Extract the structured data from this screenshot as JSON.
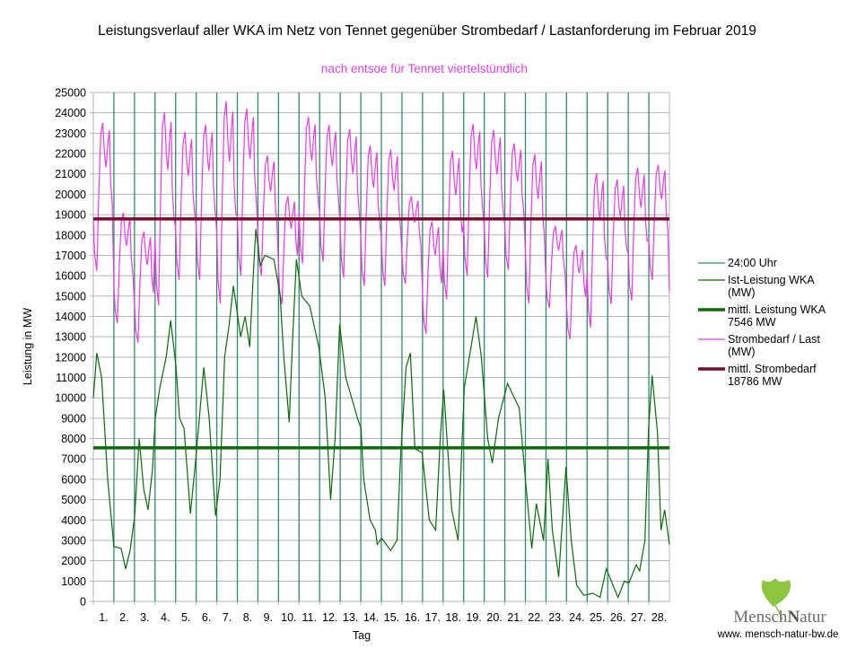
{
  "chart_data": {
    "type": "line",
    "title": "Leistungsverlauf aller WKA im Netz von Tennet gegenüber  Strombedarf / Lastanforderung im Februar 2019",
    "subtitle": "nach entsoe für Tennet viertelstündlich",
    "xlabel": "Tag",
    "ylabel": "Leistung in MW",
    "ylim": [
      0,
      25000
    ],
    "xlim": [
      0,
      28
    ],
    "grid": true,
    "legend_position": "right",
    "y_ticks": [
      0,
      1000,
      2000,
      3000,
      4000,
      5000,
      6000,
      7000,
      8000,
      9000,
      10000,
      11000,
      12000,
      13000,
      14000,
      15000,
      16000,
      17000,
      18000,
      19000,
      20000,
      21000,
      22000,
      23000,
      24000,
      25000
    ],
    "x_tick_labels": [
      "1.",
      "2.",
      "3.",
      "4.",
      "5.",
      "6.",
      "7.",
      "8.",
      "9.",
      "10.",
      "11.",
      "12.",
      "13.",
      "14.",
      "15.",
      "16.",
      "17.",
      "18.",
      "19.",
      "20.",
      "21.",
      "22.",
      "23.",
      "24.",
      "25.",
      "26.",
      "27.",
      "28."
    ],
    "legend": [
      {
        "label": "24:00 Uhr",
        "color": "#2e8b6a",
        "width": 1
      },
      {
        "label": "Ist-Leistung WKA (MW)",
        "color": "#0b6b0b",
        "width": 1
      },
      {
        "label": "mittl. Leistung WKA 7546 MW",
        "color": "#0b6b0b",
        "width": 4
      },
      {
        "label": "Strombedarf / Last (MW)",
        "color": "#e83ce8",
        "width": 1
      },
      {
        "label": "mittl. Strombedarf 18786 MW",
        "color": "#7a0a2a",
        "width": 4
      }
    ],
    "legend_lines": [
      [
        "24:00 Uhr"
      ],
      [
        "Ist-Leistung WKA",
        "(MW)"
      ],
      [
        "mittl. Leistung WKA",
        "7546 MW"
      ],
      [
        "Strombedarf / Last",
        "(MW)"
      ],
      [
        "mittl. Strombedarf",
        "18786 MW"
      ]
    ],
    "mean_wka": 7546,
    "mean_demand": 18786,
    "wka_series": [
      [
        0,
        10000
      ],
      [
        0.17,
        12200
      ],
      [
        0.4,
        11000
      ],
      [
        0.7,
        6000
      ],
      [
        1.0,
        2700
      ],
      [
        1.35,
        2600
      ],
      [
        1.57,
        1600
      ],
      [
        1.79,
        2500
      ],
      [
        2.01,
        4200
      ],
      [
        2.23,
        8000
      ],
      [
        2.45,
        5500
      ],
      [
        2.66,
        4500
      ],
      [
        2.88,
        6500
      ],
      [
        3.01,
        9000
      ],
      [
        3.23,
        10500
      ],
      [
        3.54,
        12000
      ],
      [
        3.76,
        13800
      ],
      [
        4.02,
        11500
      ],
      [
        4.19,
        9000
      ],
      [
        4.41,
        8500
      ],
      [
        4.72,
        4300
      ],
      [
        4.98,
        7000
      ],
      [
        5.37,
        11500
      ],
      [
        5.63,
        9000
      ],
      [
        5.94,
        4200
      ],
      [
        6.16,
        6000
      ],
      [
        6.38,
        12000
      ],
      [
        6.59,
        13500
      ],
      [
        6.81,
        15500
      ],
      [
        7.16,
        13000
      ],
      [
        7.38,
        14000
      ],
      [
        7.6,
        12500
      ],
      [
        7.77,
        16000
      ],
      [
        7.9,
        18300
      ],
      [
        8.12,
        16500
      ],
      [
        8.34,
        17000
      ],
      [
        8.78,
        16800
      ],
      [
        9.08,
        15000
      ],
      [
        9.26,
        12000
      ],
      [
        9.52,
        8800
      ],
      [
        9.69,
        13000
      ],
      [
        9.87,
        16800
      ],
      [
        10.13,
        15000
      ],
      [
        10.52,
        14500
      ],
      [
        10.96,
        12500
      ],
      [
        11.27,
        10000
      ],
      [
        11.53,
        5000
      ],
      [
        11.75,
        8000
      ],
      [
        11.97,
        13600
      ],
      [
        12.27,
        11000
      ],
      [
        12.84,
        9000
      ],
      [
        13.01,
        8500
      ],
      [
        13.14,
        6000
      ],
      [
        13.45,
        4000
      ],
      [
        13.71,
        3500
      ],
      [
        13.8,
        2800
      ],
      [
        14.02,
        3100
      ],
      [
        14.45,
        2500
      ],
      [
        14.76,
        3000
      ],
      [
        14.93,
        7000
      ],
      [
        15.2,
        11500
      ],
      [
        15.41,
        12200
      ],
      [
        15.63,
        7500
      ],
      [
        15.98,
        7300
      ],
      [
        16.33,
        4000
      ],
      [
        16.64,
        3500
      ],
      [
        16.86,
        8000
      ],
      [
        17.03,
        10400
      ],
      [
        17.42,
        4500
      ],
      [
        17.73,
        3000
      ],
      [
        18.03,
        10500
      ],
      [
        18.6,
        14000
      ],
      [
        18.86,
        12000
      ],
      [
        19.17,
        8000
      ],
      [
        19.39,
        6800
      ],
      [
        19.69,
        9000
      ],
      [
        20.13,
        10700
      ],
      [
        20.7,
        9500
      ],
      [
        21.0,
        6000
      ],
      [
        21.31,
        2600
      ],
      [
        21.53,
        4800
      ],
      [
        21.88,
        3000
      ],
      [
        22.1,
        7000
      ],
      [
        22.31,
        3500
      ],
      [
        22.62,
        1200
      ],
      [
        22.97,
        6600
      ],
      [
        23.23,
        3000
      ],
      [
        23.49,
        800
      ],
      [
        23.84,
        300
      ],
      [
        24.28,
        400
      ],
      [
        24.63,
        200
      ],
      [
        24.93,
        1600
      ],
      [
        25.5,
        200
      ],
      [
        25.81,
        1000
      ],
      [
        26.03,
        900
      ],
      [
        26.38,
        1800
      ],
      [
        26.55,
        1500
      ],
      [
        26.81,
        3000
      ],
      [
        26.99,
        8500
      ],
      [
        27.16,
        11100
      ],
      [
        27.42,
        8300
      ],
      [
        27.59,
        3500
      ],
      [
        27.77,
        4500
      ],
      [
        28.0,
        2800
      ]
    ],
    "demand_daily_min": [
      16240,
      13670,
      12710,
      14550,
      15800,
      15800,
      14630,
      16000,
      16000,
      14600,
      16600,
      16700,
      15900,
      15500,
      15500,
      15600,
      13150,
      14850,
      16000,
      15900,
      16280,
      14630,
      14420,
      12880,
      13450,
      14600,
      14780,
      15800
    ],
    "demand_daily_peak": [
      23500,
      19100,
      18160,
      24030,
      23070,
      23430,
      24560,
      24200,
      21900,
      19900,
      23800,
      23400,
      23200,
      22400,
      22200,
      19900,
      18660,
      22130,
      23450,
      23150,
      22500,
      21970,
      18440,
      17500,
      21030,
      20720,
      21300,
      21450
    ]
  },
  "logo": {
    "brand": "MenschNatur",
    "url": "www. mensch-natur-bw.de"
  }
}
